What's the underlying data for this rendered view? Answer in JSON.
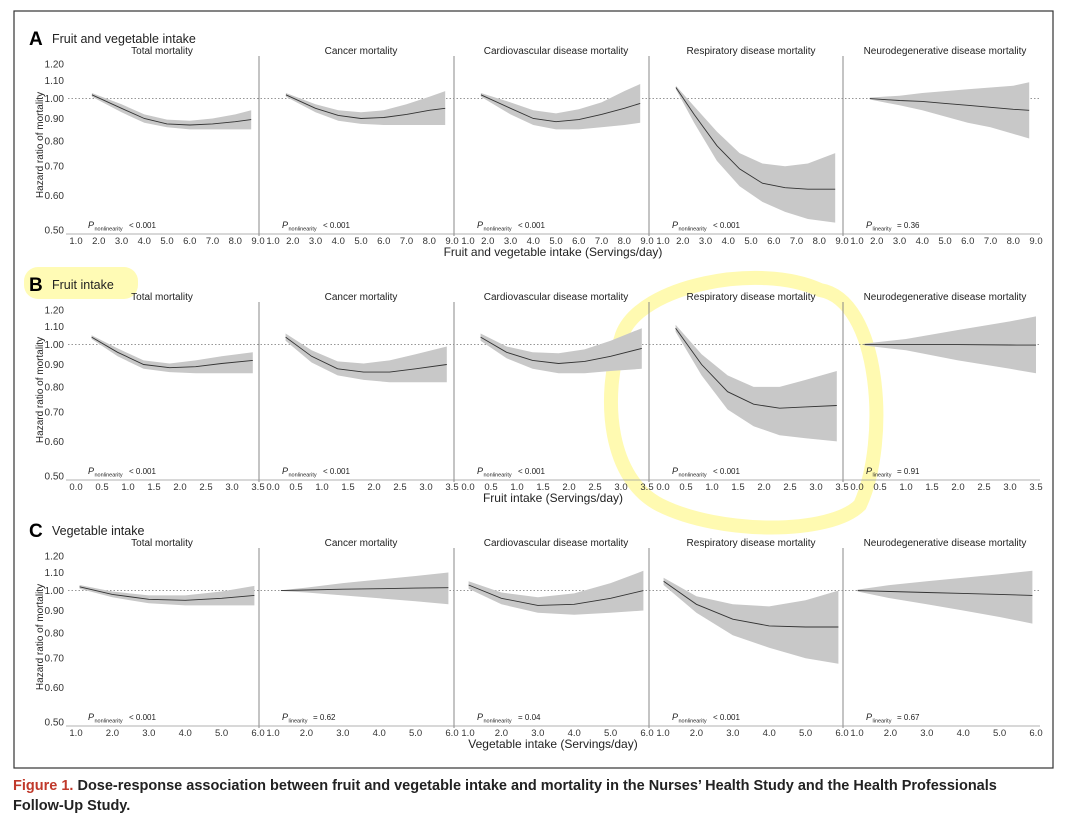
{
  "chart_data": [
    {
      "type": "line",
      "panel": "A",
      "title": "Fruit and vegetable intake",
      "xlabel": "Fruit and vegetable intake (Servings/day)",
      "ylabel": "Hazard ratio of mortality",
      "y_ticks": [
        "1.20",
        "1.10",
        "1.00",
        "0.90",
        "0.80",
        "0.70",
        "0.60",
        "0.50"
      ],
      "y_scale": "log",
      "ylim": [
        0.5,
        1.2
      ],
      "xlim": [
        1.0,
        9.0
      ],
      "x_ticks": [
        "1.0",
        "2.0",
        "3.0",
        "4.0",
        "5.0",
        "6.0",
        "7.0",
        "8.0",
        "9.0"
      ],
      "reference_line": 1.0,
      "subplots": [
        {
          "title": "Total mortality",
          "p_label": "nonlinearity",
          "p_text": "< 0.001",
          "x": [
            1.7,
            3,
            4,
            5,
            6,
            7,
            8,
            8.7
          ],
          "y": [
            1.02,
            0.95,
            0.9,
            0.875,
            0.87,
            0.875,
            0.885,
            0.895
          ],
          "lower": [
            1.01,
            0.93,
            0.88,
            0.86,
            0.85,
            0.85,
            0.85,
            0.85
          ],
          "upper": [
            1.03,
            0.97,
            0.92,
            0.895,
            0.89,
            0.9,
            0.92,
            0.94
          ]
        },
        {
          "title": "Cancer mortality",
          "p_label": "nonlinearity",
          "p_text": "< 0.001",
          "x": [
            1.7,
            3,
            4,
            5,
            6,
            7,
            8,
            8.7
          ],
          "y": [
            1.02,
            0.95,
            0.915,
            0.9,
            0.905,
            0.92,
            0.94,
            0.95
          ],
          "lower": [
            1.01,
            0.93,
            0.89,
            0.875,
            0.87,
            0.87,
            0.87,
            0.87
          ],
          "upper": [
            1.03,
            0.97,
            0.94,
            0.93,
            0.94,
            0.97,
            1.01,
            1.04
          ]
        },
        {
          "title": "Cardiovascular disease mortality",
          "p_label": "nonlinearity",
          "p_text": "< 0.001",
          "x": [
            1.7,
            3,
            4,
            5,
            6,
            7,
            8,
            8.7
          ],
          "y": [
            1.02,
            0.95,
            0.9,
            0.885,
            0.895,
            0.92,
            0.95,
            0.975
          ],
          "lower": [
            1.01,
            0.92,
            0.87,
            0.85,
            0.85,
            0.86,
            0.87,
            0.88
          ],
          "upper": [
            1.03,
            0.98,
            0.94,
            0.925,
            0.945,
            0.98,
            1.04,
            1.08
          ]
        },
        {
          "title": "Respiratory disease mortality",
          "p_label": "nonlinearity",
          "p_text": "< 0.001",
          "x": [
            1.7,
            2.5,
            3.5,
            4.5,
            5.5,
            6.5,
            7.5,
            8.7
          ],
          "y": [
            1.06,
            0.92,
            0.78,
            0.69,
            0.64,
            0.625,
            0.62,
            0.62
          ],
          "lower": [
            1.05,
            0.88,
            0.72,
            0.63,
            0.58,
            0.55,
            0.53,
            0.52
          ],
          "upper": [
            1.07,
            0.96,
            0.84,
            0.75,
            0.71,
            0.7,
            0.71,
            0.75
          ]
        },
        {
          "title": "Neurodegenerative disease mortality",
          "p_label": "linearity",
          "p_text": "= 0.36",
          "x": [
            1.7,
            3,
            4,
            5,
            6,
            7,
            8,
            8.7
          ],
          "y": [
            1.0,
            0.99,
            0.985,
            0.975,
            0.965,
            0.955,
            0.945,
            0.94
          ],
          "lower": [
            0.995,
            0.965,
            0.94,
            0.91,
            0.88,
            0.86,
            0.83,
            0.81
          ],
          "upper": [
            1.005,
            1.015,
            1.03,
            1.04,
            1.05,
            1.06,
            1.07,
            1.09
          ]
        }
      ]
    },
    {
      "type": "line",
      "panel": "B",
      "title": "Fruit intake",
      "xlabel": "Fruit intake (Servings/day)",
      "ylabel": "Hazard ratio of mortality",
      "y_ticks": [
        "1.20",
        "1.10",
        "1.00",
        "0.90",
        "0.80",
        "0.70",
        "0.60",
        "0.50"
      ],
      "y_scale": "log",
      "ylim": [
        0.5,
        1.2
      ],
      "xlim": [
        0.0,
        3.5
      ],
      "x_ticks": [
        "0.0",
        "0.5",
        "1.0",
        "1.5",
        "2.0",
        "2.5",
        "3.0",
        "3.5"
      ],
      "reference_line": 1.0,
      "subplots": [
        {
          "title": "Total mortality",
          "p_label": "nonlinearity",
          "p_text": "< 0.001",
          "x": [
            0.3,
            0.8,
            1.3,
            1.8,
            2.3,
            2.8,
            3.4
          ],
          "y": [
            1.04,
            0.96,
            0.9,
            0.885,
            0.89,
            0.905,
            0.92
          ],
          "lower": [
            1.03,
            0.94,
            0.88,
            0.865,
            0.86,
            0.86,
            0.86
          ],
          "upper": [
            1.05,
            0.98,
            0.92,
            0.905,
            0.92,
            0.94,
            0.96
          ]
        },
        {
          "title": "Cancer mortality",
          "p_label": "nonlinearity",
          "p_text": "< 0.001",
          "x": [
            0.3,
            0.8,
            1.3,
            1.8,
            2.3,
            2.8,
            3.4
          ],
          "y": [
            1.04,
            0.94,
            0.88,
            0.865,
            0.865,
            0.88,
            0.9
          ],
          "lower": [
            1.02,
            0.91,
            0.85,
            0.83,
            0.82,
            0.82,
            0.82
          ],
          "upper": [
            1.06,
            0.97,
            0.915,
            0.905,
            0.92,
            0.95,
            0.99
          ]
        },
        {
          "title": "Cardiovascular disease mortality",
          "p_label": "nonlinearity",
          "p_text": "< 0.001",
          "x": [
            0.3,
            0.8,
            1.3,
            1.8,
            2.3,
            2.8,
            3.4
          ],
          "y": [
            1.04,
            0.96,
            0.92,
            0.905,
            0.915,
            0.94,
            0.98
          ],
          "lower": [
            1.02,
            0.93,
            0.88,
            0.86,
            0.86,
            0.87,
            0.88
          ],
          "upper": [
            1.06,
            0.99,
            0.96,
            0.955,
            0.975,
            1.02,
            1.09
          ]
        },
        {
          "title": "Respiratory disease mortality",
          "p_label": "nonlinearity",
          "p_text": "< 0.001",
          "x": [
            0.3,
            0.8,
            1.3,
            1.8,
            2.3,
            2.8,
            3.4
          ],
          "y": [
            1.09,
            0.9,
            0.78,
            0.73,
            0.715,
            0.72,
            0.725
          ],
          "lower": [
            1.07,
            0.85,
            0.71,
            0.65,
            0.62,
            0.61,
            0.6
          ],
          "upper": [
            1.11,
            0.95,
            0.85,
            0.8,
            0.8,
            0.83,
            0.87
          ]
        },
        {
          "title": "Neurodegenerative disease mortality",
          "p_label": "linearity",
          "p_text": "= 0.91",
          "x": [
            0.2,
            1.0,
            2.0,
            3.0,
            3.5
          ],
          "y": [
            1.0,
            1.0,
            1.0,
            0.998,
            0.997
          ],
          "lower": [
            0.995,
            0.97,
            0.92,
            0.88,
            0.86
          ],
          "upper": [
            1.005,
            1.03,
            1.08,
            1.13,
            1.16
          ]
        }
      ]
    },
    {
      "type": "line",
      "panel": "C",
      "title": "Vegetable intake",
      "xlabel": "Vegetable intake (Servings/day)",
      "ylabel": "Hazard ratio of mortality",
      "y_ticks": [
        "1.20",
        "1.10",
        "1.00",
        "0.90",
        "0.80",
        "0.70",
        "0.60",
        "0.50"
      ],
      "y_scale": "log",
      "ylim": [
        0.5,
        1.2
      ],
      "xlim": [
        1.0,
        6.0
      ],
      "x_ticks": [
        "1.0",
        "2.0",
        "3.0",
        "4.0",
        "5.0",
        "6.0"
      ],
      "reference_line": 1.0,
      "subplots": [
        {
          "title": "Total mortality",
          "p_label": "nonlinearity",
          "p_text": "< 0.001",
          "x": [
            1.1,
            2,
            3,
            4,
            5,
            5.9
          ],
          "y": [
            1.02,
            0.98,
            0.955,
            0.95,
            0.96,
            0.975
          ],
          "lower": [
            1.01,
            0.965,
            0.935,
            0.925,
            0.925,
            0.925
          ],
          "upper": [
            1.03,
            0.995,
            0.975,
            0.975,
            0.995,
            1.025
          ]
        },
        {
          "title": "Cancer mortality",
          "p_label": "linearity",
          "p_text": "= 0.62",
          "x": [
            1.3,
            2,
            3,
            4,
            5,
            5.9
          ],
          "y": [
            1.0,
            1.003,
            1.007,
            1.01,
            1.013,
            1.015
          ],
          "lower": [
            0.998,
            0.99,
            0.975,
            0.96,
            0.945,
            0.93
          ],
          "upper": [
            1.002,
            1.016,
            1.04,
            1.06,
            1.08,
            1.1
          ]
        },
        {
          "title": "Cardiovascular disease mortality",
          "p_label": "nonlinearity",
          "p_text": "= 0.04",
          "x": [
            1.1,
            2,
            3,
            4,
            5,
            5.9
          ],
          "y": [
            1.03,
            0.96,
            0.925,
            0.93,
            0.96,
            1.0
          ],
          "lower": [
            1.01,
            0.93,
            0.89,
            0.88,
            0.89,
            0.9
          ],
          "upper": [
            1.05,
            0.99,
            0.965,
            0.985,
            1.04,
            1.11
          ]
        },
        {
          "title": "Respiratory disease mortality",
          "p_label": "nonlinearity",
          "p_text": "< 0.001",
          "x": [
            1.1,
            2,
            3,
            4,
            5,
            5.9
          ],
          "y": [
            1.05,
            0.93,
            0.86,
            0.83,
            0.825,
            0.825
          ],
          "lower": [
            1.03,
            0.89,
            0.79,
            0.74,
            0.7,
            0.68
          ],
          "upper": [
            1.07,
            0.97,
            0.93,
            0.92,
            0.95,
            1.0
          ]
        },
        {
          "title": "Neurodegenerative disease mortality",
          "p_label": "linearity",
          "p_text": "= 0.67",
          "x": [
            1.1,
            2,
            3,
            4,
            5,
            5.9
          ],
          "y": [
            1.0,
            0.995,
            0.99,
            0.985,
            0.98,
            0.975
          ],
          "lower": [
            0.995,
            0.96,
            0.93,
            0.9,
            0.87,
            0.84
          ],
          "upper": [
            1.005,
            1.03,
            1.05,
            1.07,
            1.09,
            1.11
          ]
        }
      ]
    }
  ],
  "caption": {
    "label": "Figure 1.",
    "text": " Dose-response association between fruit and vegetable intake and mortality in the Nurses’ Health Study and the Health Professionals Follow-Up Study."
  },
  "colors": {
    "band": "#c8c8c8",
    "line": "#333333",
    "reference": "#888888",
    "border": "#333333",
    "highlight": "#fffaa8",
    "caption_label": "#c0392b"
  }
}
